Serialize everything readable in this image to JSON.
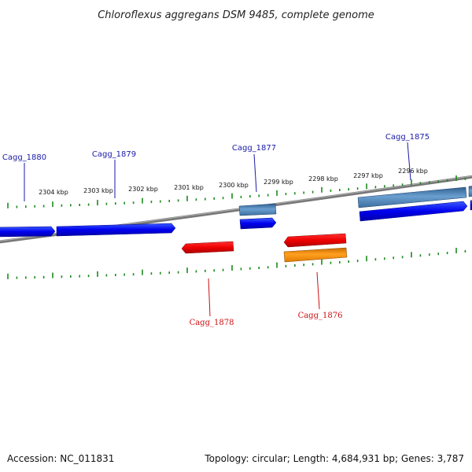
{
  "title": "Chloroflexus aggregans DSM 9485, complete genome",
  "footer": {
    "accession": "Accession: NC_011831",
    "stats": "Topology: circular; Length: 4,684,931 bp; Genes: 3,787"
  },
  "scale_labels": [
    "2304 kbp",
    "2303 kbp",
    "2302 kbp",
    "2301 kbp",
    "2300 kbp",
    "2299 kbp",
    "2298 kbp",
    "2297 kbp",
    "2296 kbp"
  ],
  "gene_labels": {
    "cagg_1880": "Cagg_1880",
    "cagg_1879": "Cagg_1879",
    "cagg_1877": "Cagg_1877",
    "cagg_1875": "Cagg_1875",
    "cagg_1878": "Cagg_1878",
    "cagg_1876": "Cagg_1876"
  },
  "colors": {
    "forward_cds": "#0000ee",
    "forward_gene": "#4a7fb5",
    "reverse_cds": "#ee0000",
    "reverse_gene": "#ff8c00",
    "backbone": "#808080",
    "ticks": "#1a8a1a"
  }
}
